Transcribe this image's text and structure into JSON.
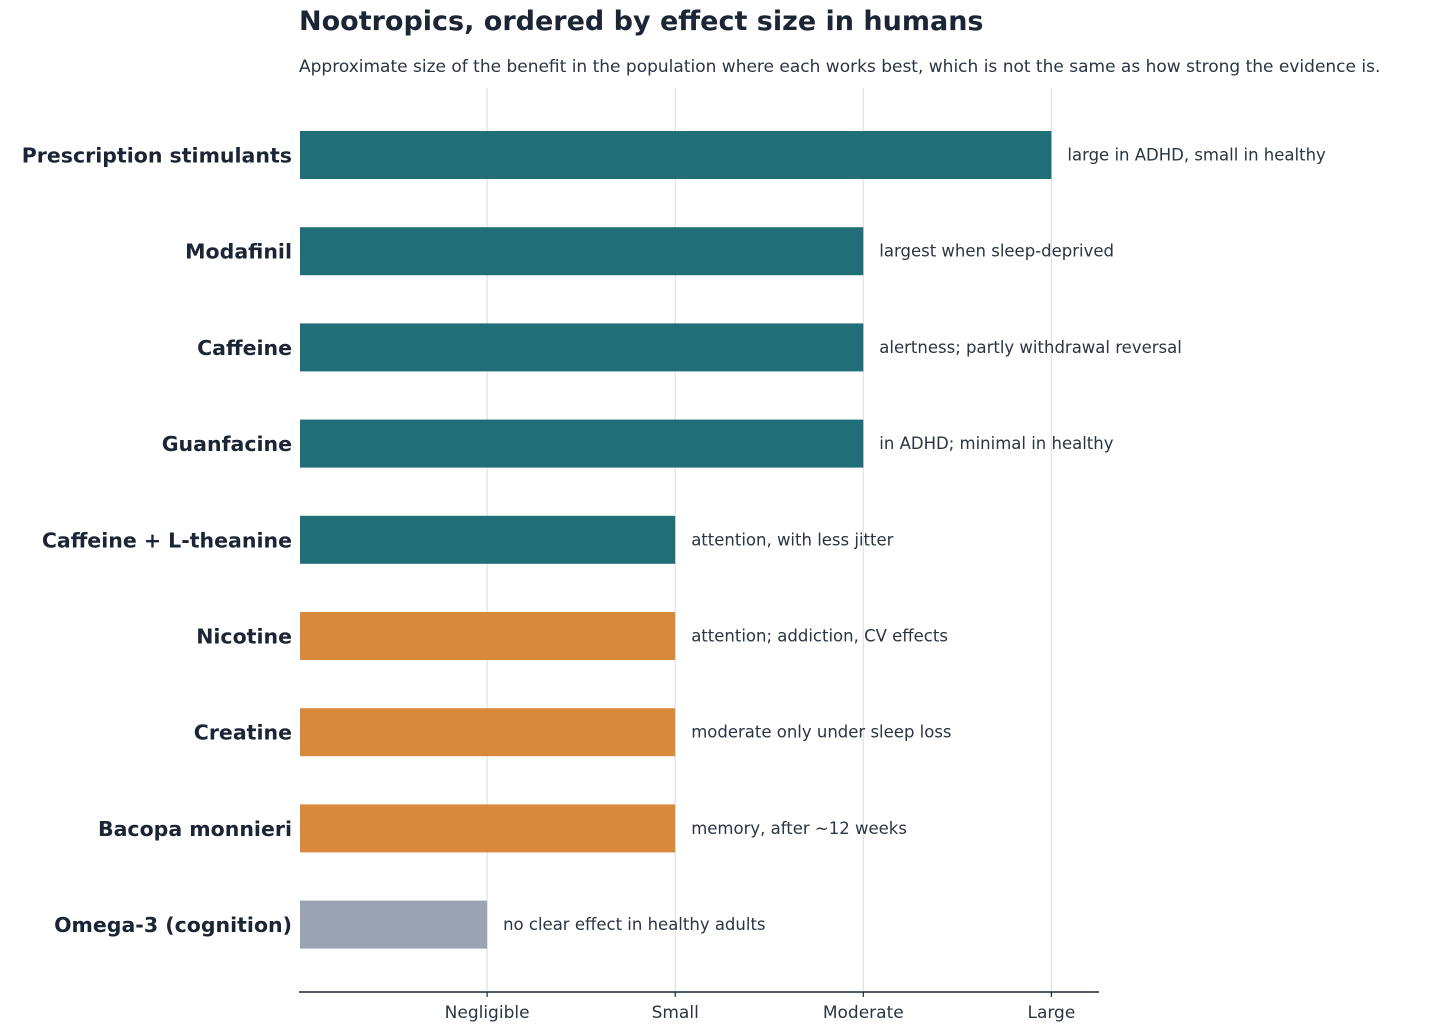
{
  "chart_data": {
    "type": "bar",
    "orientation": "horizontal",
    "title": "Nootropics, ordered by effect size in humans",
    "subtitle": "Approximate size of the benefit in the population where each works best, which is not the same as how strong the evidence is.",
    "x_ticks": [
      "Negligible",
      "Small",
      "Moderate",
      "Large"
    ],
    "x_tick_values": [
      1,
      2,
      3,
      4
    ],
    "xlim": [
      0,
      4.25
    ],
    "grid": "vertical",
    "legend": "none",
    "categories": [
      "Prescription stimulants",
      "Modafinil",
      "Caffeine",
      "Guanfacine",
      "Caffeine + L-theanine",
      "Nicotine",
      "Creatine",
      "Bacopa monnieri",
      "Omega-3 (cognition)"
    ],
    "values": [
      4,
      3,
      3,
      3,
      2,
      2,
      2,
      2,
      1
    ],
    "annotations": [
      "large in ADHD, small in healthy",
      "largest when sleep-deprived",
      "alertness; partly withdrawal reversal",
      "in ADHD; minimal in healthy",
      "attention, with less jitter",
      "attention; addiction, CV effects",
      "moderate only under sleep loss",
      "memory, after ~12 weeks",
      "no clear effect in healthy adults"
    ],
    "bar_colors": [
      "#206f78",
      "#206f78",
      "#206f78",
      "#206f78",
      "#206f78",
      "#d9893c",
      "#d9893c",
      "#d9893c",
      "#9aa3b1"
    ]
  }
}
